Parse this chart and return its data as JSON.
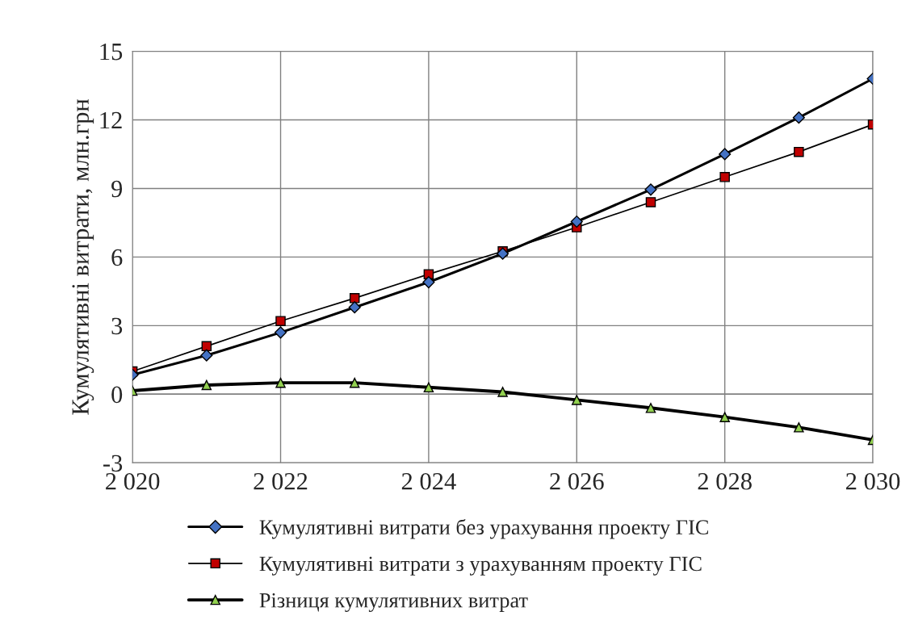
{
  "chart_data": {
    "type": "line",
    "ylabel": "Кумулятивні витрати, млн.грн",
    "x": [
      2020,
      2021,
      2022,
      2023,
      2024,
      2025,
      2026,
      2027,
      2028,
      2029,
      2030
    ],
    "series": [
      {
        "name": "Кумулятивні витрати без урахування проекту ГІС",
        "color": "#4472c4",
        "marker": "diamond",
        "values": [
          0.85,
          1.7,
          2.7,
          3.8,
          4.9,
          6.15,
          7.55,
          8.95,
          10.5,
          12.1,
          13.8
        ]
      },
      {
        "name": "Кумулятивні витрати з урахуванням проекту ГІС",
        "color": "#c00000",
        "marker": "square",
        "values": [
          1.0,
          2.1,
          3.2,
          4.2,
          5.25,
          6.25,
          7.3,
          8.4,
          9.5,
          10.6,
          11.8
        ]
      },
      {
        "name": "Різниця кумулятивних витрат",
        "color": "#92d050",
        "marker": "triangle",
        "values": [
          0.15,
          0.4,
          0.5,
          0.5,
          0.3,
          0.1,
          -0.25,
          -0.6,
          -1.0,
          -1.45,
          -2.0
        ]
      }
    ],
    "xlim": [
      2020,
      2030
    ],
    "xticks": [
      {
        "value": 2020,
        "label": "2 020"
      },
      {
        "value": 2022,
        "label": "2 022"
      },
      {
        "value": 2024,
        "label": "2 024"
      },
      {
        "value": 2026,
        "label": "2 026"
      },
      {
        "value": 2028,
        "label": "2 028"
      },
      {
        "value": 2030,
        "label": "2 030"
      }
    ],
    "ylim": [
      -3,
      15
    ],
    "yticks": [
      -3,
      0,
      3,
      6,
      9,
      12,
      15
    ],
    "grid": true,
    "legend": "bottom",
    "line_style": "solid"
  }
}
